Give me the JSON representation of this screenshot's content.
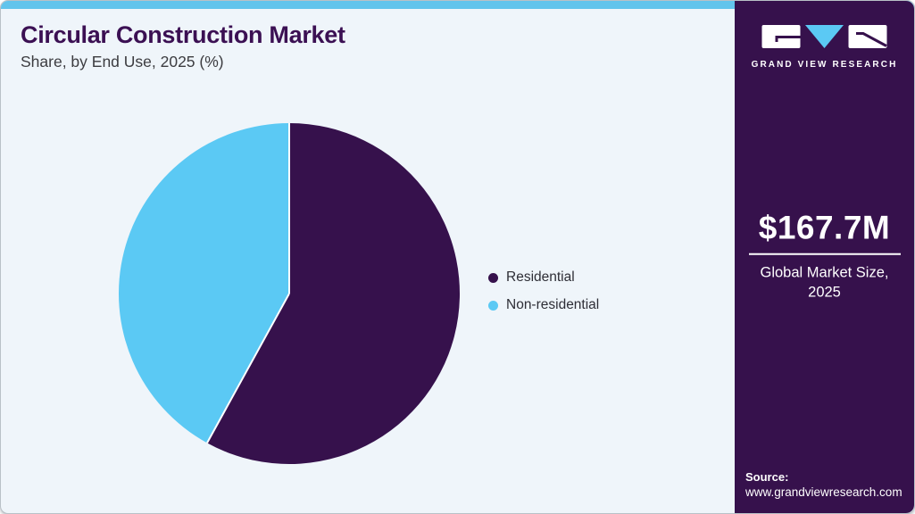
{
  "header": {
    "title": "Circular Construction Market",
    "subtitle": "Share, by End Use, 2025 (%)"
  },
  "chart_data": {
    "type": "pie",
    "title": "Circular Construction Market Share, by End Use, 2025 (%)",
    "start_angle_deg": 0,
    "direction": "clockwise",
    "legend_position": "right",
    "divider_color": "#ffffff",
    "segments": [
      {
        "label": "Residential",
        "value": 58,
        "color": "#36114c"
      },
      {
        "label": "Non-residential",
        "value": 42,
        "color": "#5bc9f4"
      }
    ]
  },
  "sidebar": {
    "brand": "GRAND VIEW RESEARCH",
    "market_size": {
      "value": "$167.7M",
      "caption": "Global Market Size, 2025"
    },
    "source": {
      "label": "Source:",
      "url": "www.grandviewresearch.com"
    }
  },
  "colors": {
    "accent_blue": "#5bc9f4",
    "topbar_blue": "#62c4ec",
    "brand_purple": "#36114c",
    "title_purple": "#3b1053",
    "panel_bg": "#eff5fa"
  }
}
